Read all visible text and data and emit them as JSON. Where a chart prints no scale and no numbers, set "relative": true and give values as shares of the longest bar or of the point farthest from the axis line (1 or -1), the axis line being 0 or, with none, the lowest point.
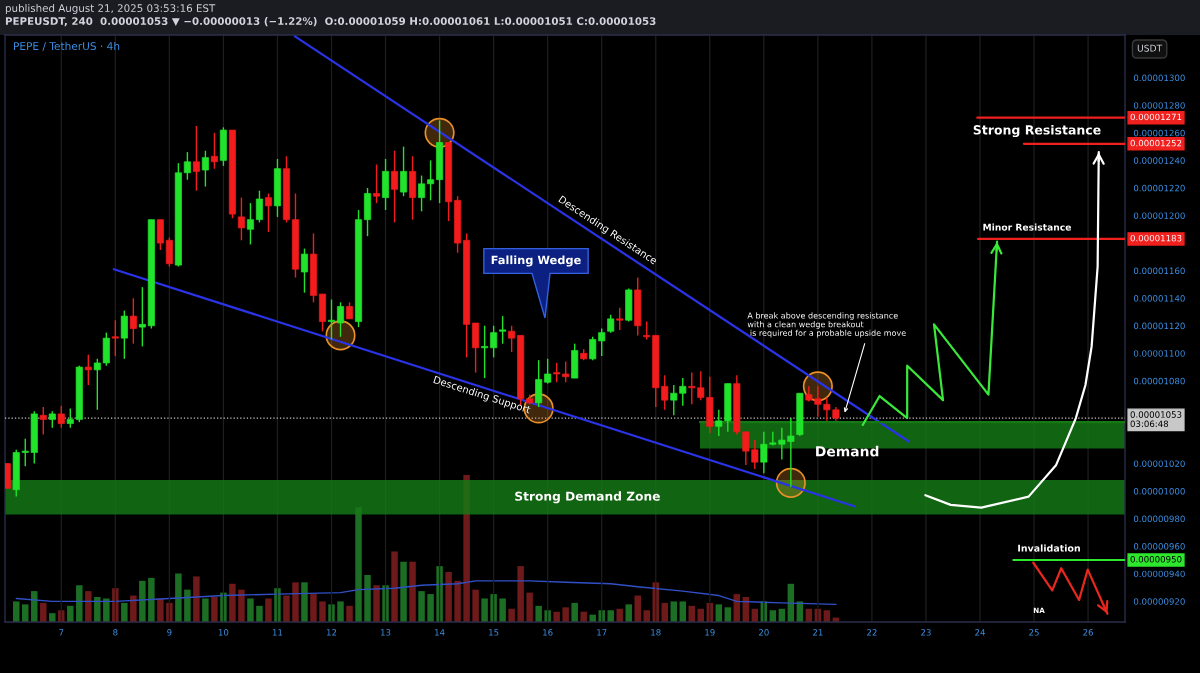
{
  "chart_data": [
    {
      "type": "candlestick",
      "title": "PEPE / TetherUS · 4h",
      "subtitle": "PEPEUSDT, 240  0.00001053 ▼ −0.00000013 (−1.22%)  O:0.00001059 H:0.00001061 L:0.00001051 C:0.00001053",
      "ylabel": "USDT",
      "x": [
        "2025-08-06T00:00",
        "2025-08-06T04:00",
        "2025-08-06T08:00",
        "2025-08-06T12:00",
        "2025-08-06T16:00",
        "2025-08-06T20:00",
        "2025-08-07T00:00",
        "2025-08-07T04:00",
        "2025-08-07T08:00",
        "2025-08-07T12:00",
        "2025-08-07T16:00",
        "2025-08-07T20:00",
        "2025-08-08T00:00",
        "2025-08-08T04:00",
        "2025-08-08T08:00",
        "2025-08-08T12:00",
        "2025-08-08T16:00",
        "2025-08-08T20:00",
        "2025-08-09T00:00",
        "2025-08-09T04:00",
        "2025-08-09T08:00",
        "2025-08-09T12:00",
        "2025-08-09T16:00",
        "2025-08-09T20:00",
        "2025-08-10T00:00",
        "2025-08-10T04:00",
        "2025-08-10T08:00",
        "2025-08-10T12:00",
        "2025-08-10T16:00",
        "2025-08-10T20:00",
        "2025-08-11T00:00",
        "2025-08-11T04:00",
        "2025-08-11T08:00",
        "2025-08-11T12:00",
        "2025-08-11T16:00",
        "2025-08-11T20:00",
        "2025-08-12T00:00",
        "2025-08-12T04:00",
        "2025-08-12T08:00",
        "2025-08-12T12:00",
        "2025-08-12T16:00",
        "2025-08-12T20:00",
        "2025-08-13T00:00",
        "2025-08-13T04:00",
        "2025-08-13T08:00",
        "2025-08-13T12:00",
        "2025-08-13T16:00",
        "2025-08-13T20:00",
        "2025-08-14T00:00",
        "2025-08-14T04:00",
        "2025-08-14T08:00",
        "2025-08-14T12:00",
        "2025-08-14T16:00",
        "2025-08-14T20:00",
        "2025-08-15T00:00",
        "2025-08-15T04:00",
        "2025-08-15T08:00",
        "2025-08-15T12:00",
        "2025-08-15T16:00",
        "2025-08-15T20:00",
        "2025-08-16T00:00",
        "2025-08-16T04:00",
        "2025-08-16T08:00",
        "2025-08-16T12:00",
        "2025-08-16T16:00",
        "2025-08-16T20:00",
        "2025-08-17T00:00",
        "2025-08-17T04:00",
        "2025-08-17T08:00",
        "2025-08-17T12:00",
        "2025-08-17T16:00",
        "2025-08-17T20:00",
        "2025-08-18T00:00",
        "2025-08-18T04:00",
        "2025-08-18T08:00",
        "2025-08-18T12:00",
        "2025-08-18T16:00",
        "2025-08-18T20:00",
        "2025-08-19T00:00",
        "2025-08-19T04:00",
        "2025-08-19T08:00",
        "2025-08-19T12:00",
        "2025-08-19T16:00",
        "2025-08-19T20:00",
        "2025-08-20T00:00",
        "2025-08-20T04:00",
        "2025-08-20T08:00",
        "2025-08-20T12:00",
        "2025-08-20T16:00",
        "2025-08-20T20:00",
        "2025-08-21T00:00",
        "2025-08-21T04:00",
        "2025-08-21T08:00"
      ],
      "ohlc": [
        [
          1.02e-05,
          1.02e-05,
          1.002e-05,
          1.002e-05
        ],
        [
          1.001e-05,
          1.03e-05,
          9.96e-06,
          1.028e-05
        ],
        [
          1.028e-05,
          1.038e-05,
          1.018e-05,
          1.029e-05
        ],
        [
          1.028e-05,
          1.058e-05,
          1.02e-05,
          1.056e-05
        ],
        [
          1.055e-05,
          1.061e-05,
          1.041e-05,
          1.052e-05
        ],
        [
          1.052e-05,
          1.058e-05,
          1.046e-05,
          1.056e-05
        ],
        [
          1.056e-05,
          1.062e-05,
          1.046e-05,
          1.049e-05
        ],
        [
          1.049e-05,
          1.06e-05,
          1.046e-05,
          1.052e-05
        ],
        [
          1.052e-05,
          1.091e-05,
          1.05e-05,
          1.09e-05
        ],
        [
          1.09e-05,
          1.099e-05,
          1.077e-05,
          1.088e-05
        ],
        [
          1.088e-05,
          1.096e-05,
          1.059e-05,
          1.093e-05
        ],
        [
          1.093e-05,
          1.115e-05,
          1.091e-05,
          1.111e-05
        ],
        [
          1.112e-05,
          1.124e-05,
          1.098e-05,
          1.111e-05
        ],
        [
          1.111e-05,
          1.131e-05,
          1.096e-05,
          1.127e-05
        ],
        [
          1.127e-05,
          1.14e-05,
          1.107e-05,
          1.118e-05
        ],
        [
          1.119e-05,
          1.148e-05,
          1.105e-05,
          1.121e-05
        ],
        [
          1.12e-05,
          1.197e-05,
          1.118e-05,
          1.197e-05
        ],
        [
          1.197e-05,
          1.197e-05,
          1.175e-05,
          1.18e-05
        ],
        [
          1.182e-05,
          1.184e-05,
          1.163e-05,
          1.165e-05
        ],
        [
          1.164e-05,
          1.238e-05,
          1.163e-05,
          1.231e-05
        ],
        [
          1.231e-05,
          1.246e-05,
          1.226e-05,
          1.239e-05
        ],
        [
          1.239e-05,
          1.265e-05,
          1.218e-05,
          1.232e-05
        ],
        [
          1.233e-05,
          1.247e-05,
          1.221e-05,
          1.242e-05
        ],
        [
          1.243e-05,
          1.26e-05,
          1.234e-05,
          1.239e-05
        ],
        [
          1.24e-05,
          1.264e-05,
          1.236e-05,
          1.262e-05
        ],
        [
          1.262e-05,
          1.262e-05,
          1.198e-05,
          1.201e-05
        ],
        [
          1.199e-05,
          1.213e-05,
          1.182e-05,
          1.191e-05
        ],
        [
          1.19e-05,
          1.209e-05,
          1.179e-05,
          1.197e-05
        ],
        [
          1.197e-05,
          1.218e-05,
          1.195e-05,
          1.212e-05
        ],
        [
          1.213e-05,
          1.216e-05,
          1.188e-05,
          1.207e-05
        ],
        [
          1.207e-05,
          1.241e-05,
          1.199e-05,
          1.234e-05
        ],
        [
          1.234e-05,
          1.243e-05,
          1.195e-05,
          1.197e-05
        ],
        [
          1.197e-05,
          1.216e-05,
          1.155e-05,
          1.161e-05
        ],
        [
          1.159e-05,
          1.176e-05,
          1.144e-05,
          1.172e-05
        ],
        [
          1.172e-05,
          1.187e-05,
          1.137e-05,
          1.142e-05
        ],
        [
          1.143e-05,
          1.143e-05,
          1.116e-05,
          1.123e-05
        ],
        [
          1.123e-05,
          1.139e-05,
          1.11e-05,
          1.124e-05
        ],
        [
          1.122e-05,
          1.137e-05,
          1.112e-05,
          1.134e-05
        ],
        [
          1.134e-05,
          1.137e-05,
          1.125e-05,
          1.125e-05
        ],
        [
          1.123e-05,
          1.204e-05,
          1.119e-05,
          1.197e-05
        ],
        [
          1.197e-05,
          1.22e-05,
          1.185e-05,
          1.216e-05
        ],
        [
          1.216e-05,
          1.237e-05,
          1.209e-05,
          1.214e-05
        ],
        [
          1.213e-05,
          1.241e-05,
          1.204e-05,
          1.232e-05
        ],
        [
          1.232e-05,
          1.247e-05,
          1.195e-05,
          1.219e-05
        ],
        [
          1.217e-05,
          1.25e-05,
          1.214e-05,
          1.232e-05
        ],
        [
          1.232e-05,
          1.243e-05,
          1.197e-05,
          1.213e-05
        ],
        [
          1.213e-05,
          1.229e-05,
          1.203e-05,
          1.223e-05
        ],
        [
          1.223e-05,
          1.24e-05,
          1.211e-05,
          1.226e-05
        ],
        [
          1.226e-05,
          1.269e-05,
          1.209e-05,
          1.253e-05
        ],
        [
          1.253e-05,
          1.253e-05,
          1.196e-05,
          1.21e-05
        ],
        [
          1.211e-05,
          1.214e-05,
          1.173e-05,
          1.18e-05
        ],
        [
          1.182e-05,
          1.187e-05,
          1.097e-05,
          1.121e-05
        ],
        [
          1.122e-05,
          1.122e-05,
          1.086e-05,
          1.104e-05
        ],
        [
          1.104e-05,
          1.12e-05,
          1.082e-05,
          1.105e-05
        ],
        [
          1.104e-05,
          1.12e-05,
          1.097e-05,
          1.115e-05
        ],
        [
          1.116e-05,
          1.127e-05,
          1.107e-05,
          1.117e-05
        ],
        [
          1.116e-05,
          1.12e-05,
          1.101e-05,
          1.111e-05
        ],
        [
          1.113e-05,
          1.113e-05,
          1.062e-05,
          1.067e-05
        ],
        [
          1.067e-05,
          1.07e-05,
          1.063e-05,
          1.064e-05
        ],
        [
          1.064e-05,
          1.095e-05,
          1.061e-05,
          1.081e-05
        ],
        [
          1.079e-05,
          1.096e-05,
          1.078e-05,
          1.085e-05
        ],
        [
          1.086e-05,
          1.093e-05,
          1.079e-05,
          1.085e-05
        ],
        [
          1.085e-05,
          1.094e-05,
          1.079e-05,
          1.083e-05
        ],
        [
          1.082e-05,
          1.107e-05,
          1.082e-05,
          1.102e-05
        ],
        [
          1.1e-05,
          1.103e-05,
          1.095e-05,
          1.096e-05
        ],
        [
          1.096e-05,
          1.112e-05,
          1.095e-05,
          1.11e-05
        ],
        [
          1.109e-05,
          1.118e-05,
          1.098e-05,
          1.115e-05
        ],
        [
          1.116e-05,
          1.128e-05,
          1.115e-05,
          1.125e-05
        ],
        [
          1.125e-05,
          1.133e-05,
          1.117e-05,
          1.124e-05
        ],
        [
          1.124e-05,
          1.147e-05,
          1.123e-05,
          1.146e-05
        ],
        [
          1.146e-05,
          1.155e-05,
          1.113e-05,
          1.12e-05
        ],
        [
          1.113e-05,
          1.123e-05,
          1.11e-05,
          1.112e-05
        ],
        [
          1.113e-05,
          1.113e-05,
          1.061e-05,
          1.075e-05
        ],
        [
          1.076e-05,
          1.084e-05,
          1.059e-05,
          1.066e-05
        ],
        [
          1.066e-05,
          1.077e-05,
          1.055e-05,
          1.071e-05
        ],
        [
          1.071e-05,
          1.082e-05,
          1.062e-05,
          1.076e-05
        ],
        [
          1.076e-05,
          1.086e-05,
          1.063e-05,
          1.075e-05
        ],
        [
          1.075e-05,
          1.087e-05,
          1.066e-05,
          1.068e-05
        ],
        [
          1.068e-05,
          1.083e-05,
          1.042e-05,
          1.047e-05
        ],
        [
          1.047e-05,
          1.059e-05,
          1.04e-05,
          1.051e-05
        ],
        [
          1.051e-05,
          1.078e-05,
          1.043e-05,
          1.078e-05
        ],
        [
          1.078e-05,
          1.084e-05,
          1.041e-05,
          1.043e-05
        ],
        [
          1.043e-05,
          1.043e-05,
          1.019e-05,
          1.029e-05
        ],
        [
          1.03e-05,
          1.037e-05,
          1.016e-05,
          1.021e-05
        ],
        [
          1.021e-05,
          1.043e-05,
          1.013e-05,
          1.034e-05
        ],
        [
          1.034e-05,
          1.043e-05,
          1.033e-05,
          1.035e-05
        ],
        [
          1.034e-05,
          1.046e-05,
          1.023e-05,
          1.037e-05
        ],
        [
          1.036e-05,
          1.053e-05,
          1.003e-05,
          1.04e-05
        ],
        [
          1.041e-05,
          1.071e-05,
          1.04e-05,
          1.071e-05
        ],
        [
          1.07e-05,
          1.076e-05,
          1.065e-05,
          1.066e-05
        ],
        [
          1.067e-05,
          1.076e-05,
          1.054e-05,
          1.063e-05
        ],
        [
          1.063e-05,
          1.068e-05,
          1.051e-05,
          1.059e-05
        ],
        [
          1.059e-05,
          1.061e-05,
          1.051e-05,
          1.053e-05
        ]
      ],
      "colors": [
        "#f21c1c",
        "#22e32b",
        "#22e32b",
        "#22e32b",
        "#f21c1c",
        "#22e32b",
        "#f21c1c",
        "#22e32b",
        "#22e32b",
        "#f21c1c",
        "#22e32b",
        "#22e32b",
        "#f21c1c",
        "#22e32b",
        "#f21c1c",
        "#22e32b",
        "#22e32b",
        "#f21c1c",
        "#f21c1c",
        "#22e32b",
        "#22e32b",
        "#f21c1c",
        "#22e32b",
        "#f21c1c",
        "#22e32b",
        "#f21c1c",
        "#f21c1c",
        "#22e32b",
        "#22e32b",
        "#f21c1c",
        "#22e32b",
        "#f21c1c",
        "#f21c1c",
        "#22e32b",
        "#f21c1c",
        "#f21c1c",
        "#22e32b",
        "#22e32b",
        "#f21c1c",
        "#22e32b",
        "#22e32b",
        "#f21c1c",
        "#22e32b",
        "#f21c1c",
        "#22e32b",
        "#f21c1c",
        "#22e32b",
        "#22e32b",
        "#22e32b",
        "#f21c1c",
        "#f21c1c",
        "#f21c1c",
        "#f21c1c",
        "#22e32b",
        "#22e32b",
        "#22e32b",
        "#f21c1c",
        "#f21c1c",
        "#f21c1c",
        "#22e32b",
        "#22e32b",
        "#f21c1c",
        "#f21c1c",
        "#22e32b",
        "#f21c1c",
        "#22e32b",
        "#22e32b",
        "#22e32b",
        "#f21c1c",
        "#22e32b",
        "#f21c1c",
        "#f21c1c",
        "#f21c1c",
        "#f21c1c",
        "#22e32b",
        "#22e32b",
        "#f21c1c",
        "#f21c1c",
        "#f21c1c",
        "#22e32b",
        "#22e32b",
        "#f21c1c",
        "#f21c1c",
        "#f21c1c",
        "#22e32b",
        "#22e32b",
        "#22e32b",
        "#22e32b",
        "#22e32b",
        "#f21c1c",
        "#f21c1c",
        "#f21c1c",
        "#f21c1c"
      ],
      "xlim": [
        "2025-08-05T23:00",
        "2025-08-26T16:24"
      ],
      "ylim": [
        9.05e-06,
        1.331e-05
      ],
      "xticks": [
        {
          "value": "2025-08-07",
          "label": "7"
        },
        {
          "value": "2025-08-08",
          "label": "8"
        },
        {
          "value": "2025-08-09",
          "label": "9"
        },
        {
          "value": "2025-08-10",
          "label": "10"
        },
        {
          "value": "2025-08-11",
          "label": "11"
        },
        {
          "value": "2025-08-12",
          "label": "12"
        },
        {
          "value": "2025-08-13",
          "label": "13"
        },
        {
          "value": "2025-08-14",
          "label": "14"
        },
        {
          "value": "2025-08-15",
          "label": "15"
        },
        {
          "value": "2025-08-16",
          "label": "16"
        },
        {
          "value": "2025-08-17",
          "label": "17"
        },
        {
          "value": "2025-08-18",
          "label": "18"
        },
        {
          "value": "2025-08-19",
          "label": "19"
        },
        {
          "value": "2025-08-20",
          "label": "20"
        },
        {
          "value": "2025-08-21",
          "label": "21"
        },
        {
          "value": "2025-08-22",
          "label": "22"
        },
        {
          "value": "2025-08-23",
          "label": "23"
        },
        {
          "value": "2025-08-24",
          "label": "24"
        },
        {
          "value": "2025-08-25",
          "label": "25"
        },
        {
          "value": "2025-08-26",
          "label": "26"
        }
      ],
      "yticks": [
        {
          "value": 1.3e-05,
          "label": "0.00001300"
        },
        {
          "value": 1.28e-05,
          "label": "0.00001280"
        },
        {
          "value": 1.26e-05,
          "label": "0.00001260"
        },
        {
          "value": 1.24e-05,
          "label": "0.00001240"
        },
        {
          "value": 1.22e-05,
          "label": "0.00001220"
        },
        {
          "value": 1.2e-05,
          "label": "0.00001200"
        },
        {
          "value": 1.16e-05,
          "label": "0.00001160"
        },
        {
          "value": 1.14e-05,
          "label": "0.00001140"
        },
        {
          "value": 1.12e-05,
          "label": "0.00001120"
        },
        {
          "value": 1.1e-05,
          "label": "0.00001100"
        },
        {
          "value": 1.08e-05,
          "label": "0.00001080"
        },
        {
          "value": 1.02e-05,
          "label": "0.00001020"
        },
        {
          "value": 1e-05,
          "label": "0.00001000"
        },
        {
          "value": 9.8e-06,
          "label": "0.00000980"
        },
        {
          "value": 9.6e-06,
          "label": "0.00000960"
        },
        {
          "value": 9.4e-06,
          "label": "0.00000940"
        },
        {
          "value": 9.2e-06,
          "label": "0.00000920"
        }
      ],
      "grid": "x",
      "series": [
        {
          "type": "line",
          "name": "Descending Resistance",
          "color": "#2a33e6",
          "x": [
            "2025-08-11T07:45",
            "2025-08-22T16:24"
          ],
          "values": [
            1.33e-05,
            1.036e-05
          ]
        },
        {
          "type": "line",
          "name": "Descending Support",
          "color": "#2a33e6",
          "x": [
            "2025-08-07T23:20",
            "2025-08-21T16:10"
          ],
          "values": [
            1.161e-05,
            9.89e-06
          ]
        },
        {
          "type": "line",
          "color": "#157a15",
          "x": [
            "2025-08-18T19:40",
            "2025-08-26T16:24"
          ],
          "values": [
            1.05e-05,
            1.05e-05
          ],
          "lower": [
            1.031e-05,
            1.031e-05
          ],
          "upper": [
            1.05e-05,
            1.05e-05
          ]
        },
        {
          "type": "line",
          "color": "#f0201e",
          "x": [
            "2025-08-23T22:50",
            "2025-08-26T16:24"
          ],
          "values": [
            1.271e-05,
            1.271e-05
          ],
          "value_labels": [
            null,
            "0.00001271"
          ]
        },
        {
          "type": "line",
          "color": "#f0201e",
          "x": [
            "2025-08-24T19:30",
            "2025-08-26T16:24"
          ],
          "values": [
            1.252e-05,
            1.252e-05
          ],
          "value_labels": [
            null,
            "0.00001252"
          ]
        },
        {
          "type": "line",
          "color": "#f0201e",
          "x": [
            "2025-08-23T23:10",
            "2025-08-26T16:24"
          ],
          "values": [
            1.183e-05,
            1.183e-05
          ],
          "value_labels": [
            null,
            "0.00001183"
          ]
        },
        {
          "type": "line",
          "color": "#2ee82e",
          "x": [
            "2025-08-24T14:50",
            "2025-08-26T16:24"
          ],
          "values": [
            9.5e-06,
            9.5e-06
          ],
          "value_labels": [
            null,
            "0.00000950"
          ]
        },
        {
          "type": "line",
          "color": "#3ae83a",
          "x": [
            "2025-08-21T19:55",
            "2025-08-22T03:25",
            "2025-08-22T15:40",
            "2025-08-22T15:40",
            "2025-08-23T07:35",
            "2025-08-23T03:35",
            "2025-08-24T03:45",
            "2025-08-24T07:35"
          ],
          "values": [
            1.048e-05,
            1.069e-05,
            1.053e-05,
            1.091e-05,
            1.066e-05,
            1.121e-05,
            1.07e-05,
            1.181e-05
          ]
        },
        {
          "type": "line",
          "color": "#ffffff",
          "x": [
            "2025-08-22T23:45",
            "2025-08-23T11:00",
            "2025-08-24T00:35",
            "2025-08-24T21:35",
            "2025-08-25T09:50",
            "2025-08-25T18:35",
            "2025-08-25T22:50",
            "2025-08-26T01:35",
            "2025-08-26T04:15",
            "2025-08-26T04:45"
          ],
          "values": [
            9.97e-06,
            9.9e-06,
            9.88e-06,
            9.96e-06,
            1.019e-05,
            1.053e-05,
            1.077e-05,
            1.105e-05,
            1.163e-05,
            1.246e-05
          ]
        },
        {
          "type": "line",
          "color": "#e8281e",
          "x": [
            "2025-08-24T23:40",
            "2025-08-25T08:05",
            "2025-08-25T12:05",
            "2025-08-25T20:00",
            "2025-08-25T23:50",
            "2025-08-26T08:35"
          ],
          "values": [
            9.48e-06,
            9.28e-06,
            9.44e-06,
            9.21e-06,
            9.43e-06,
            9.11e-06
          ]
        },
        {
          "type": "scatter",
          "color": "#e8902a",
          "marker": "circle",
          "x": [
            "2025-08-12T04:00",
            "2025-08-14T00:00",
            "2025-08-15T20:00",
            "2025-08-20T12:00",
            "2025-08-21T00:00"
          ],
          "values": [
            1.113e-05,
            1.26e-05,
            1.06e-05,
            1.006e-05,
            1.076e-05
          ]
        }
      ],
      "bands": [
        {
          "axis": "y",
          "from": 9.83e-06,
          "to": 1.008e-05,
          "label": "Strong Demand Zone",
          "color": "#157a15"
        }
      ],
      "ref_lines": [
        {
          "axis": "y",
          "value": 1.053e-05,
          "label": "0.00001053\n03:06:48",
          "color": "#c8c8c8",
          "line_style": "dotted"
        }
      ],
      "annotations": [
        "published August 21, 2025 03:53:16 EST",
        "Falling Wedge",
        {
          "text": "A break above descending resistance\nwith a clean wedge breakout\n is required for a probable upside move",
          "x": "2025-08-21T11:45",
          "y": 1.056e-05
        },
        {
          "text": "Demand",
          "x": "2025-08-21T13:00",
          "y": 1.028e-05
        },
        "Strong Resistance",
        "Minor Resistance",
        "Invalidation",
        "NA"
      ]
    },
    {
      "type": "bar",
      "relative": true,
      "x": [
        "2025-08-06T04:00",
        "2025-08-06T08:00",
        "2025-08-06T12:00",
        "2025-08-06T16:00",
        "2025-08-06T20:00",
        "2025-08-07T00:00",
        "2025-08-07T04:00",
        "2025-08-07T08:00",
        "2025-08-07T12:00",
        "2025-08-07T16:00",
        "2025-08-07T20:00",
        "2025-08-08T00:00",
        "2025-08-08T04:00",
        "2025-08-08T08:00",
        "2025-08-08T12:00",
        "2025-08-08T16:00",
        "2025-08-08T20:00",
        "2025-08-09T00:00",
        "2025-08-09T04:00",
        "2025-08-09T08:00",
        "2025-08-09T12:00",
        "2025-08-09T16:00",
        "2025-08-09T20:00",
        "2025-08-10T00:00",
        "2025-08-10T04:00",
        "2025-08-10T08:00",
        "2025-08-10T12:00",
        "2025-08-10T16:00",
        "2025-08-10T20:00",
        "2025-08-11T00:00",
        "2025-08-11T04:00",
        "2025-08-11T08:00",
        "2025-08-11T12:00",
        "2025-08-11T16:00",
        "2025-08-11T20:00",
        "2025-08-12T00:00",
        "2025-08-12T04:00",
        "2025-08-12T08:00",
        "2025-08-12T12:00",
        "2025-08-12T16:00",
        "2025-08-12T20:00",
        "2025-08-13T00:00",
        "2025-08-13T04:00",
        "2025-08-13T08:00",
        "2025-08-13T12:00",
        "2025-08-13T16:00",
        "2025-08-13T20:00",
        "2025-08-14T00:00",
        "2025-08-14T04:00",
        "2025-08-14T08:00",
        "2025-08-14T12:00",
        "2025-08-14T16:00",
        "2025-08-14T20:00",
        "2025-08-15T00:00",
        "2025-08-15T04:00",
        "2025-08-15T08:00",
        "2025-08-15T12:00",
        "2025-08-15T16:00",
        "2025-08-15T20:00",
        "2025-08-16T00:00",
        "2025-08-16T04:00",
        "2025-08-16T08:00",
        "2025-08-16T12:00",
        "2025-08-16T16:00",
        "2025-08-16T20:00",
        "2025-08-17T00:00",
        "2025-08-17T04:00",
        "2025-08-17T08:00",
        "2025-08-17T12:00",
        "2025-08-17T16:00",
        "2025-08-17T20:00",
        "2025-08-18T00:00",
        "2025-08-18T04:00",
        "2025-08-18T08:00",
        "2025-08-18T12:00",
        "2025-08-18T16:00",
        "2025-08-18T20:00",
        "2025-08-19T00:00",
        "2025-08-19T04:00",
        "2025-08-19T08:00",
        "2025-08-19T12:00",
        "2025-08-19T16:00",
        "2025-08-19T20:00",
        "2025-08-20T00:00",
        "2025-08-20T04:00",
        "2025-08-20T08:00",
        "2025-08-20T12:00",
        "2025-08-20T16:00",
        "2025-08-20T20:00",
        "2025-08-21T00:00",
        "2025-08-21T04:00",
        "2025-08-21T08:00"
      ],
      "xlim": [
        "2025-08-05T23:00",
        "2025-08-26T16:24"
      ],
      "series": [
        {
          "type": "bar",
          "values": [
            0.14,
            0.12,
            0.21,
            0.13,
            0.06,
            0.08,
            0.11,
            0.25,
            0.21,
            0.17,
            0.16,
            0.23,
            0.13,
            0.18,
            0.28,
            0.3,
            0.16,
            0.13,
            0.33,
            0.22,
            0.31,
            0.16,
            0.17,
            0.2,
            0.26,
            0.22,
            0.16,
            0.11,
            0.16,
            0.23,
            0.18,
            0.27,
            0.27,
            0.19,
            0.14,
            0.12,
            0.14,
            0.11,
            0.78,
            0.32,
            0.25,
            0.25,
            0.48,
            0.41,
            0.41,
            0.21,
            0.19,
            0.38,
            0.34,
            0.28,
            1,
            0.22,
            0.16,
            0.19,
            0.16,
            0.09,
            0.38,
            0.2,
            0.11,
            0.08,
            0.07,
            0.1,
            0.13,
            0.07,
            0.05,
            0.08,
            0.08,
            0.09,
            0.12,
            0.18,
            0.08,
            0.27,
            0.13,
            0.14,
            0.14,
            0.11,
            0.09,
            0.13,
            0.12,
            0.1,
            0.19,
            0.17,
            0.09,
            0.14,
            0.08,
            0.09,
            0.26,
            0.14,
            0.09,
            0.09,
            0.08,
            0.03
          ],
          "colors": [
            "#1d6e25",
            "#1d6e25",
            "#1d6e25",
            "#6e1a1a",
            "#1d6e25",
            "#6e1a1a",
            "#1d6e25",
            "#1d6e25",
            "#6e1a1a",
            "#1d6e25",
            "#1d6e25",
            "#6e1a1a",
            "#1d6e25",
            "#6e1a1a",
            "#1d6e25",
            "#1d6e25",
            "#6e1a1a",
            "#6e1a1a",
            "#1d6e25",
            "#1d6e25",
            "#6e1a1a",
            "#1d6e25",
            "#6e1a1a",
            "#1d6e25",
            "#6e1a1a",
            "#6e1a1a",
            "#1d6e25",
            "#1d6e25",
            "#6e1a1a",
            "#1d6e25",
            "#6e1a1a",
            "#6e1a1a",
            "#1d6e25",
            "#6e1a1a",
            "#6e1a1a",
            "#1d6e25",
            "#1d6e25",
            "#6e1a1a",
            "#1d6e25",
            "#1d6e25",
            "#6e1a1a",
            "#1d6e25",
            "#6e1a1a",
            "#1d6e25",
            "#6e1a1a",
            "#1d6e25",
            "#1d6e25",
            "#1d6e25",
            "#6e1a1a",
            "#6e1a1a",
            "#6e1a1a",
            "#6e1a1a",
            "#1d6e25",
            "#1d6e25",
            "#1d6e25",
            "#6e1a1a",
            "#6e1a1a",
            "#6e1a1a",
            "#1d6e25",
            "#1d6e25",
            "#6e1a1a",
            "#6e1a1a",
            "#1d6e25",
            "#6e1a1a",
            "#1d6e25",
            "#1d6e25",
            "#1d6e25",
            "#6e1a1a",
            "#1d6e25",
            "#6e1a1a",
            "#6e1a1a",
            "#6e1a1a",
            "#6e1a1a",
            "#1d6e25",
            "#1d6e25",
            "#6e1a1a",
            "#6e1a1a",
            "#6e1a1a",
            "#1d6e25",
            "#1d6e25",
            "#6e1a1a",
            "#6e1a1a",
            "#6e1a1a",
            "#1d6e25",
            "#1d6e25",
            "#1d6e25",
            "#1d6e25",
            "#1d6e25",
            "#6e1a1a",
            "#6e1a1a",
            "#6e1a1a",
            "#6e1a1a"
          ]
        },
        {
          "type": "line",
          "color": "#3150c8",
          "x": [
            "2025-08-06T04:00",
            "2025-08-06T20:00",
            "2025-08-08T00:00",
            "2025-08-09T00:00",
            "2025-08-10T00:00",
            "2025-08-11T00:00",
            "2025-08-12T04:00",
            "2025-08-12T12:00",
            "2025-08-13T04:00",
            "2025-08-13T16:00",
            "2025-08-14T08:00",
            "2025-08-14T16:00",
            "2025-08-15T16:00",
            "2025-08-16T08:00",
            "2025-08-17T04:00",
            "2025-08-17T16:00",
            "2025-08-18T12:00",
            "2025-08-19T04:00",
            "2025-08-19T12:00",
            "2025-08-20T08:00",
            "2025-08-21T08:00"
          ],
          "values": [
            0.16,
            0.14,
            0.14,
            0.16,
            0.18,
            0.19,
            0.2,
            0.22,
            0.23,
            0.25,
            0.26,
            0.28,
            0.28,
            0.27,
            0.26,
            0.24,
            0.21,
            0.18,
            0.14,
            0.13,
            0.12
          ]
        }
      ]
    }
  ]
}
